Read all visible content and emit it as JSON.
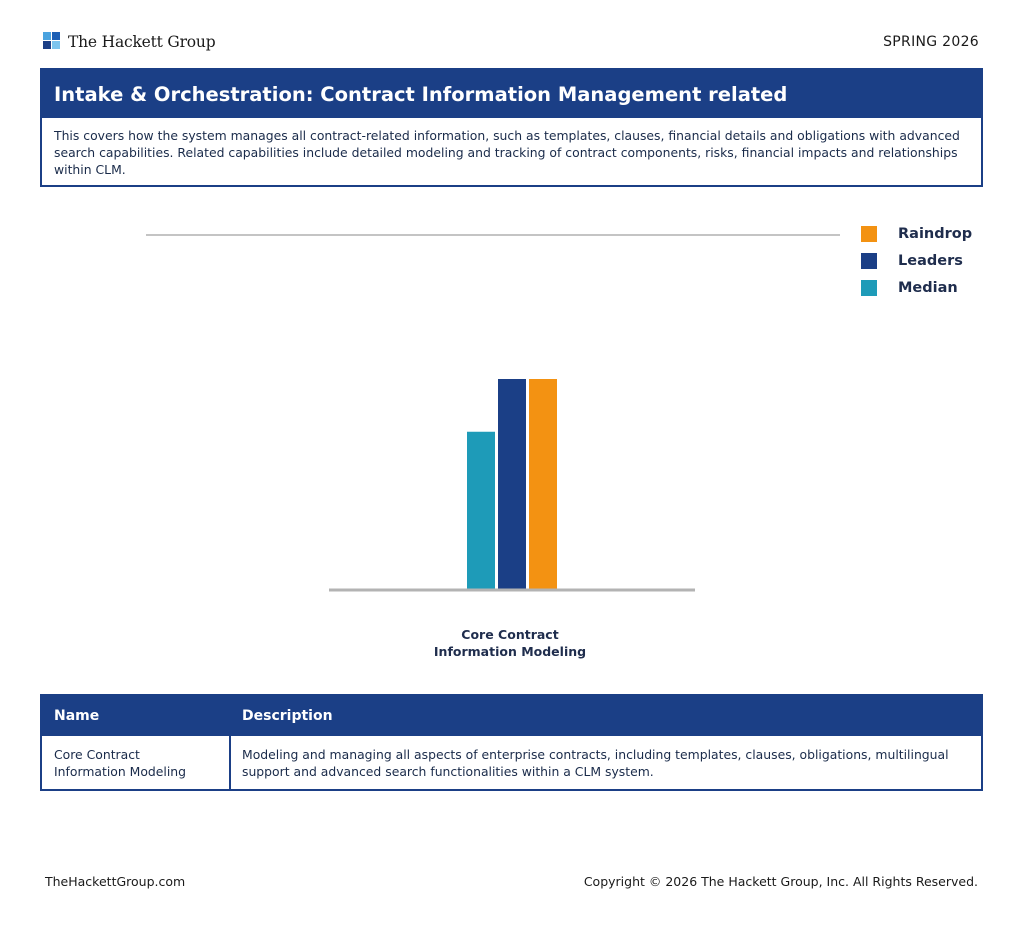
{
  "header": {
    "logo_text": "The Hackett Group",
    "edition": "SPRING 2026"
  },
  "intro": {
    "title": "Intake & Orchestration: Contract Information Management related",
    "description": "This covers how the system manages all contract-related information, such as templates, clauses, financial details and obligations with advanced search capabilities. Related capabilities include detailed modeling and tracking of contract components, risks, financial impacts and relationships within CLM."
  },
  "colors": {
    "brand": "#1b3f86",
    "raindrop": "#f39212",
    "leaders": "#1b3f86",
    "median": "#1e9bb8"
  },
  "chart_data": {
    "type": "bar",
    "title": "",
    "xlabel": "",
    "ylabel": "",
    "ylim": [
      0,
      1
    ],
    "grid": false,
    "legend_placement": "top-right",
    "categories": [
      "Core Contract Information Modeling"
    ],
    "category_label_lines": [
      "Core Contract",
      "Information Modeling"
    ],
    "series": [
      {
        "name": "Median",
        "color": "#1e9bb8",
        "values": [
          0.75
        ]
      },
      {
        "name": "Leaders",
        "color": "#1b3f86",
        "values": [
          1.0
        ]
      },
      {
        "name": "Raindrop",
        "color": "#f39212",
        "values": [
          1.0
        ]
      }
    ],
    "legend": [
      {
        "name": "Raindrop",
        "color": "#f39212"
      },
      {
        "name": "Leaders",
        "color": "#1b3f86"
      },
      {
        "name": "Median",
        "color": "#1e9bb8"
      }
    ]
  },
  "table": {
    "headers": {
      "name": "Name",
      "description": "Description"
    },
    "rows": [
      {
        "name_lines": [
          "Core Contract",
          "Information Modeling"
        ],
        "description": "Modeling and managing all aspects of enterprise contracts, including templates, clauses, obligations, multilingual support and advanced search functionalities within a CLM system."
      }
    ]
  },
  "footer": {
    "website": "TheHackettGroup.com",
    "copyright": "Copyright © 2026 The Hackett Group, Inc. All Rights Reserved."
  }
}
